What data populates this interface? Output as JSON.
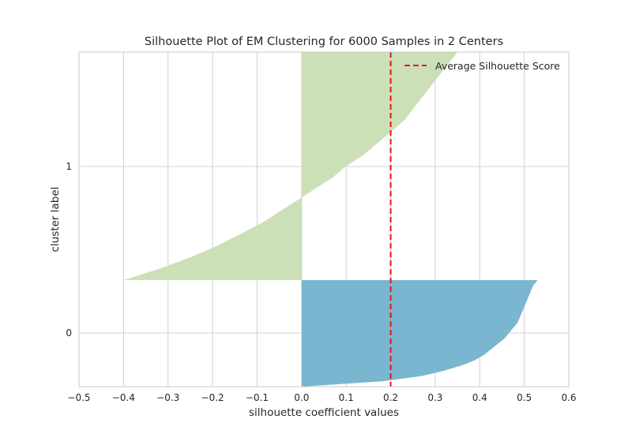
{
  "chart_data": {
    "type": "area",
    "title": "Silhouette Plot of EM Clustering for 6000 Samples in 2 Centers",
    "xlabel": "silhouette coefficient values",
    "ylabel": "cluster label",
    "xlim": [
      -0.5,
      0.6
    ],
    "x_ticks": [
      -0.5,
      -0.4,
      -0.3,
      -0.2,
      -0.1,
      0.0,
      0.1,
      0.2,
      0.3,
      0.4,
      0.5,
      0.6
    ],
    "x_tick_labels": [
      "−0.5",
      "−0.4",
      "−0.3",
      "−0.2",
      "−0.1",
      "0.0",
      "0.1",
      "0.2",
      "0.3",
      "0.4",
      "0.5",
      "0.6"
    ],
    "y_ticks": [
      {
        "label": "0",
        "pos": 0
      },
      {
        "label": "1",
        "pos": 1
      }
    ],
    "grid": true,
    "legend": {
      "position": "top-right",
      "entries": [
        "Average Silhouette Score"
      ]
    },
    "average_silhouette_score": 0.2,
    "colors": {
      "cluster_0": "#7ab6cf",
      "cluster_1": "#cce0b8",
      "average_line": "#ee1111",
      "grid": "#d0d0d0",
      "axis": "#c8c8c8"
    },
    "clusters": [
      {
        "label": "0",
        "samples": [
          0,
          0.05,
          0.1,
          0.15,
          0.2,
          0.25,
          0.3,
          0.35,
          0.4,
          0.45,
          0.5,
          0.55,
          0.6,
          0.65,
          0.7,
          0.75,
          0.8,
          0.85,
          0.9,
          0.95,
          1.0
        ],
        "values": [
          0.0,
          0.18,
          0.27,
          0.32,
          0.36,
          0.39,
          0.41,
          0.425,
          0.44,
          0.455,
          0.465,
          0.475,
          0.485,
          0.49,
          0.495,
          0.5,
          0.505,
          0.51,
          0.515,
          0.52,
          0.53
        ]
      },
      {
        "label": "1",
        "samples": [
          0,
          0.05,
          0.1,
          0.15,
          0.2,
          0.25,
          0.3,
          0.35,
          0.4,
          0.45,
          0.5,
          0.55,
          0.6,
          0.65,
          0.7,
          0.75,
          0.8,
          0.85,
          0.9,
          0.95,
          1.0
        ],
        "values": [
          -0.4,
          -0.32,
          -0.25,
          -0.19,
          -0.14,
          -0.09,
          -0.05,
          -0.01,
          0.03,
          0.07,
          0.1,
          0.14,
          0.17,
          0.2,
          0.23,
          0.25,
          0.27,
          0.29,
          0.31,
          0.33,
          0.35
        ]
      }
    ]
  }
}
